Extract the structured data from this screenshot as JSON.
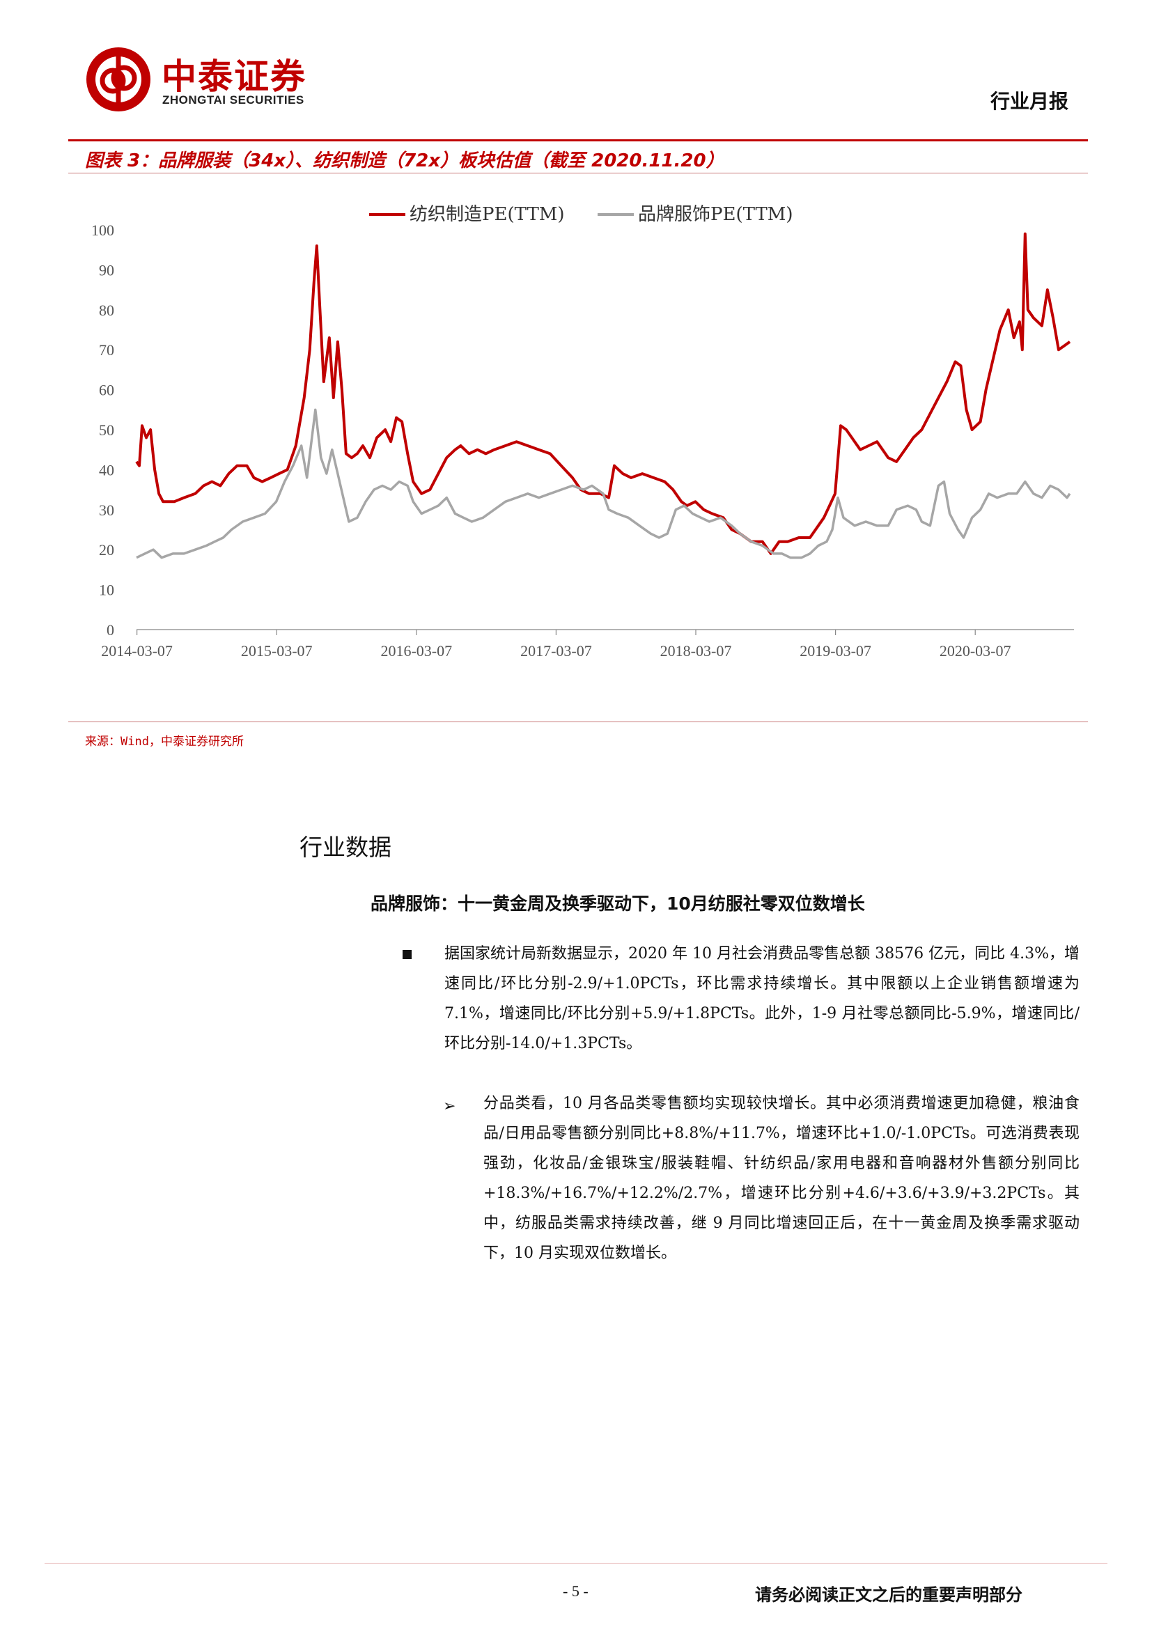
{
  "header": {
    "logo_cn": "中泰证券",
    "logo_en": "ZHONGTAI SECURITIES",
    "report_type": "行业月报"
  },
  "figure": {
    "title": "图表 3：品牌服装（34x）、纺织制造（72x）板块估值（截至 2020.11.20）",
    "source": "来源：Wind，中泰证券研究所"
  },
  "chart_data": {
    "type": "line",
    "ylim": [
      0,
      100
    ],
    "yticks": [
      "0",
      "10",
      "20",
      "30",
      "40",
      "50",
      "60",
      "70",
      "80",
      "90",
      "100"
    ],
    "xticks": [
      "2014-03-07",
      "2015-03-07",
      "2016-03-07",
      "2017-03-07",
      "2018-03-07",
      "2019-03-07",
      "2020-03-07"
    ],
    "xlim": [
      2014.18,
      2020.89
    ],
    "grid": false,
    "legend_position": "top-center",
    "series": [
      {
        "name": "纺织制造PE(TTM)",
        "color": "#c00000",
        "points": [
          [
            2014.18,
            42
          ],
          [
            2014.2,
            41
          ],
          [
            2014.22,
            51
          ],
          [
            2014.25,
            48
          ],
          [
            2014.28,
            50
          ],
          [
            2014.31,
            40
          ],
          [
            2014.34,
            34
          ],
          [
            2014.37,
            32
          ],
          [
            2014.45,
            32
          ],
          [
            2014.52,
            33
          ],
          [
            2014.6,
            34
          ],
          [
            2014.66,
            36
          ],
          [
            2014.72,
            37
          ],
          [
            2014.78,
            36
          ],
          [
            2014.84,
            39
          ],
          [
            2014.9,
            41
          ],
          [
            2014.97,
            41
          ],
          [
            2015.02,
            38
          ],
          [
            2015.08,
            37
          ],
          [
            2015.14,
            38
          ],
          [
            2015.2,
            39
          ],
          [
            2015.26,
            40
          ],
          [
            2015.32,
            46
          ],
          [
            2015.38,
            58
          ],
          [
            2015.42,
            70
          ],
          [
            2015.45,
            87
          ],
          [
            2015.47,
            96
          ],
          [
            2015.49,
            82
          ],
          [
            2015.52,
            62
          ],
          [
            2015.56,
            73
          ],
          [
            2015.59,
            58
          ],
          [
            2015.62,
            72
          ],
          [
            2015.65,
            60
          ],
          [
            2015.68,
            44
          ],
          [
            2015.72,
            43
          ],
          [
            2015.76,
            44
          ],
          [
            2015.8,
            46
          ],
          [
            2015.85,
            43
          ],
          [
            2015.9,
            48
          ],
          [
            2015.96,
            50
          ],
          [
            2016.0,
            47
          ],
          [
            2016.04,
            53
          ],
          [
            2016.08,
            52
          ],
          [
            2016.12,
            44
          ],
          [
            2016.16,
            37
          ],
          [
            2016.22,
            34
          ],
          [
            2016.28,
            35
          ],
          [
            2016.34,
            39
          ],
          [
            2016.4,
            43
          ],
          [
            2016.46,
            45
          ],
          [
            2016.5,
            46
          ],
          [
            2016.56,
            44
          ],
          [
            2016.62,
            45
          ],
          [
            2016.68,
            44
          ],
          [
            2016.74,
            45
          ],
          [
            2016.82,
            46
          ],
          [
            2016.9,
            47
          ],
          [
            2016.98,
            46
          ],
          [
            2017.06,
            45
          ],
          [
            2017.14,
            44
          ],
          [
            2017.22,
            41
          ],
          [
            2017.3,
            38
          ],
          [
            2017.36,
            35
          ],
          [
            2017.42,
            34
          ],
          [
            2017.5,
            34
          ],
          [
            2017.56,
            33
          ],
          [
            2017.6,
            41
          ],
          [
            2017.66,
            39
          ],
          [
            2017.72,
            38
          ],
          [
            2017.8,
            39
          ],
          [
            2017.88,
            38
          ],
          [
            2017.96,
            37
          ],
          [
            2018.02,
            35
          ],
          [
            2018.08,
            32
          ],
          [
            2018.12,
            31
          ],
          [
            2018.18,
            32
          ],
          [
            2018.24,
            30
          ],
          [
            2018.3,
            29
          ],
          [
            2018.38,
            28
          ],
          [
            2018.44,
            25
          ],
          [
            2018.5,
            24
          ],
          [
            2018.58,
            22
          ],
          [
            2018.66,
            22
          ],
          [
            2018.72,
            19
          ],
          [
            2018.78,
            22
          ],
          [
            2018.84,
            22
          ],
          [
            2018.92,
            23
          ],
          [
            2019.0,
            23
          ],
          [
            2019.06,
            26
          ],
          [
            2019.1,
            28
          ],
          [
            2019.14,
            31
          ],
          [
            2019.18,
            34
          ],
          [
            2019.22,
            51
          ],
          [
            2019.26,
            50
          ],
          [
            2019.3,
            48
          ],
          [
            2019.36,
            45
          ],
          [
            2019.42,
            46
          ],
          [
            2019.48,
            47
          ],
          [
            2019.56,
            43
          ],
          [
            2019.62,
            42
          ],
          [
            2019.68,
            45
          ],
          [
            2019.74,
            48
          ],
          [
            2019.8,
            50
          ],
          [
            2019.86,
            54
          ],
          [
            2019.92,
            58
          ],
          [
            2019.98,
            62
          ],
          [
            2020.04,
            67
          ],
          [
            2020.08,
            66
          ],
          [
            2020.12,
            55
          ],
          [
            2020.16,
            50
          ],
          [
            2020.22,
            52
          ],
          [
            2020.26,
            60
          ],
          [
            2020.3,
            66
          ],
          [
            2020.36,
            75
          ],
          [
            2020.42,
            80
          ],
          [
            2020.46,
            73
          ],
          [
            2020.5,
            77
          ],
          [
            2020.52,
            70
          ],
          [
            2020.54,
            99
          ],
          [
            2020.56,
            80
          ],
          [
            2020.6,
            78
          ],
          [
            2020.66,
            76
          ],
          [
            2020.7,
            85
          ],
          [
            2020.74,
            78
          ],
          [
            2020.78,
            70
          ],
          [
            2020.82,
            71
          ],
          [
            2020.86,
            72
          ]
        ]
      },
      {
        "name": "品牌服饰PE(TTM)",
        "color": "#a6a6a6",
        "points": [
          [
            2014.18,
            18
          ],
          [
            2014.24,
            19
          ],
          [
            2014.3,
            20
          ],
          [
            2014.36,
            18
          ],
          [
            2014.44,
            19
          ],
          [
            2014.52,
            19
          ],
          [
            2014.6,
            20
          ],
          [
            2014.68,
            21
          ],
          [
            2014.74,
            22
          ],
          [
            2014.8,
            23
          ],
          [
            2014.86,
            25
          ],
          [
            2014.94,
            27
          ],
          [
            2015.02,
            28
          ],
          [
            2015.1,
            29
          ],
          [
            2015.18,
            32
          ],
          [
            2015.24,
            37
          ],
          [
            2015.3,
            41
          ],
          [
            2015.36,
            46
          ],
          [
            2015.4,
            38
          ],
          [
            2015.46,
            55
          ],
          [
            2015.5,
            43
          ],
          [
            2015.54,
            39
          ],
          [
            2015.58,
            45
          ],
          [
            2015.62,
            39
          ],
          [
            2015.66,
            33
          ],
          [
            2015.7,
            27
          ],
          [
            2015.76,
            28
          ],
          [
            2015.82,
            32
          ],
          [
            2015.88,
            35
          ],
          [
            2015.94,
            36
          ],
          [
            2016.0,
            35
          ],
          [
            2016.06,
            37
          ],
          [
            2016.12,
            36
          ],
          [
            2016.16,
            32
          ],
          [
            2016.22,
            29
          ],
          [
            2016.28,
            30
          ],
          [
            2016.34,
            31
          ],
          [
            2016.4,
            33
          ],
          [
            2016.46,
            29
          ],
          [
            2016.52,
            28
          ],
          [
            2016.58,
            27
          ],
          [
            2016.66,
            28
          ],
          [
            2016.74,
            30
          ],
          [
            2016.82,
            32
          ],
          [
            2016.9,
            33
          ],
          [
            2016.98,
            34
          ],
          [
            2017.06,
            33
          ],
          [
            2017.14,
            34
          ],
          [
            2017.22,
            35
          ],
          [
            2017.3,
            36
          ],
          [
            2017.38,
            35
          ],
          [
            2017.44,
            36
          ],
          [
            2017.52,
            34
          ],
          [
            2017.56,
            30
          ],
          [
            2017.62,
            29
          ],
          [
            2017.7,
            28
          ],
          [
            2017.78,
            26
          ],
          [
            2017.86,
            24
          ],
          [
            2017.92,
            23
          ],
          [
            2017.98,
            24
          ],
          [
            2018.04,
            30
          ],
          [
            2018.1,
            31
          ],
          [
            2018.16,
            29
          ],
          [
            2018.22,
            28
          ],
          [
            2018.28,
            27
          ],
          [
            2018.36,
            28
          ],
          [
            2018.44,
            26
          ],
          [
            2018.5,
            24
          ],
          [
            2018.58,
            22
          ],
          [
            2018.66,
            21
          ],
          [
            2018.74,
            19
          ],
          [
            2018.8,
            19
          ],
          [
            2018.86,
            18
          ],
          [
            2018.94,
            18
          ],
          [
            2019.0,
            19
          ],
          [
            2019.06,
            21
          ],
          [
            2019.12,
            22
          ],
          [
            2019.16,
            25
          ],
          [
            2019.2,
            33
          ],
          [
            2019.24,
            28
          ],
          [
            2019.32,
            26
          ],
          [
            2019.4,
            27
          ],
          [
            2019.48,
            26
          ],
          [
            2019.56,
            26
          ],
          [
            2019.62,
            30
          ],
          [
            2019.7,
            31
          ],
          [
            2019.76,
            30
          ],
          [
            2019.8,
            27
          ],
          [
            2019.86,
            26
          ],
          [
            2019.92,
            36
          ],
          [
            2019.96,
            37
          ],
          [
            2020.0,
            29
          ],
          [
            2020.06,
            25
          ],
          [
            2020.1,
            23
          ],
          [
            2020.16,
            28
          ],
          [
            2020.22,
            30
          ],
          [
            2020.28,
            34
          ],
          [
            2020.34,
            33
          ],
          [
            2020.42,
            34
          ],
          [
            2020.48,
            34
          ],
          [
            2020.54,
            37
          ],
          [
            2020.6,
            34
          ],
          [
            2020.66,
            33
          ],
          [
            2020.72,
            36
          ],
          [
            2020.78,
            35
          ],
          [
            2020.84,
            33
          ],
          [
            2020.86,
            34
          ]
        ]
      }
    ]
  },
  "section": {
    "title": "行业数据",
    "subtitle": "品牌服饰：十一黄金周及换季驱动下，10月纺服社零双位数增长"
  },
  "bullets": [
    "据国家统计局新数据显示，2020 年 10 月社会消费品零售总额 38576 亿元，同比 4.3%，增速同比/环比分别-2.9/+1.0PCTs，环比需求持续增长。其中限额以上企业销售额增速为 7.1%，增速同比/环比分别+5.9/+1.8PCTs。此外，1-9 月社零总额同比-5.9%，增速同比/环比分别-14.0/+1.3PCTs。",
    "分品类看，10 月各品类零售额均实现较快增长。其中必须消费增速更加稳健，粮油食品/日用品零售额分别同比+8.8%/+11.7%，增速环比+1.0/-1.0PCTs。可选消费表现强劲，化妆品/金银珠宝/服装鞋帽、针纺织品/家用电器和音响器材外售额分别同比+18.3%/+16.7%/+12.2%/2.7%，增速环比分别+4.6/+3.6/+3.9/+3.2PCTs。其中，纺服品类需求持续改善，继 9 月同比增速回正后，在十一黄金周及换季需求驱动下，10 月实现双位数增长。"
  ],
  "footer": {
    "page": "- 5 -",
    "disclaimer": "请务必阅读正文之后的重要声明部分"
  }
}
